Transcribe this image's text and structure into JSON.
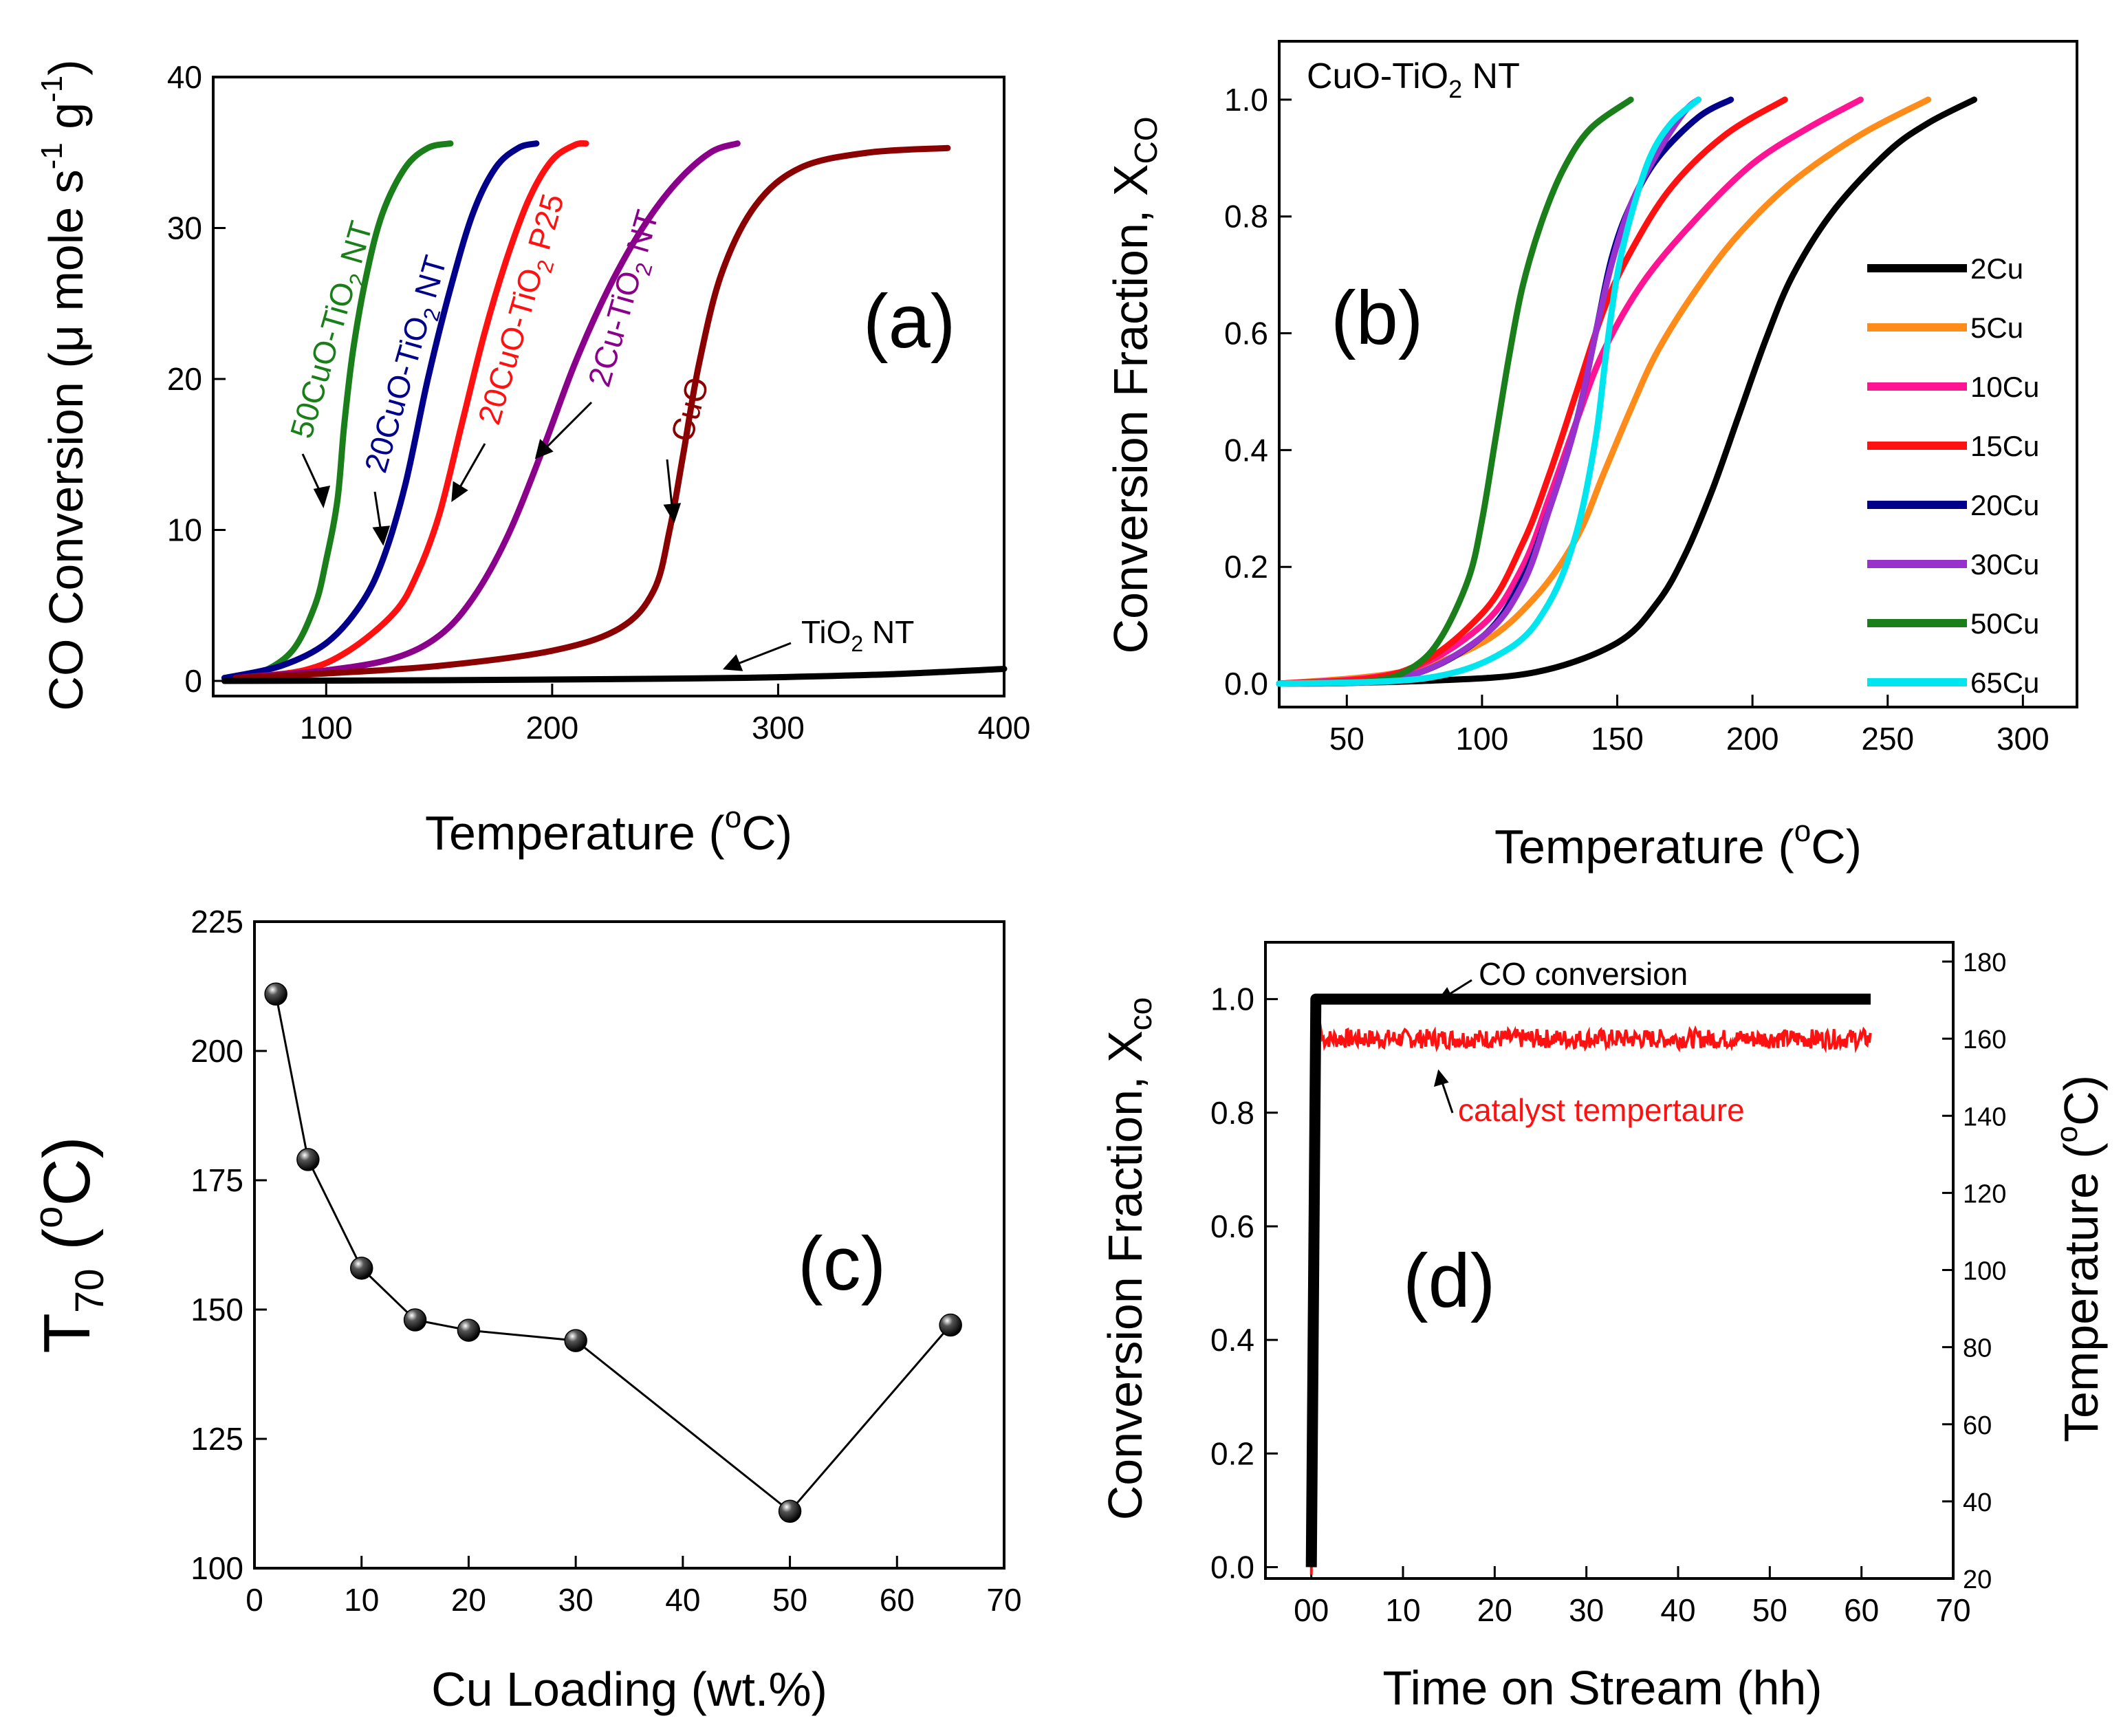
{
  "chart_data": [
    {
      "panel": "(a)",
      "type": "line",
      "title": "",
      "xlabel": "Temperature (",
      "xlabel_sup": "o",
      "xlabel_end": "C)",
      "ylabel": "CO Conversion (μ mole s",
      "ylabel_sup1": "-1",
      "ylabel_mid": " g",
      "ylabel_sup2": "-1",
      "ylabel_end": ")",
      "xlim": [
        50,
        400
      ],
      "ylim": [
        -1,
        40
      ],
      "xticks": [
        "100",
        "200",
        "300",
        "400"
      ],
      "yticks": [
        "0",
        "10",
        "20",
        "30",
        "40"
      ],
      "panel_label": "(a)",
      "series": [
        {
          "name": "50CuO-TiO2 NT",
          "label_parts": [
            "50CuO-TiO",
            "2",
            " NT"
          ],
          "color": "#1a7f1a",
          "x": [
            55,
            70,
            85,
            95,
            100,
            105,
            108,
            112,
            118,
            125,
            135,
            145,
            155
          ],
          "y": [
            0.2,
            0.5,
            2,
            5,
            8,
            12,
            17,
            22,
            27,
            31,
            34,
            35.3,
            35.6
          ]
        },
        {
          "name": "20CuO-TiO2 NT",
          "label_parts": [
            "20CuO-TiO",
            "2",
            " NT"
          ],
          "color": "#00008b",
          "x": [
            55,
            80,
            100,
            115,
            125,
            135,
            145,
            155,
            165,
            175,
            185,
            193
          ],
          "y": [
            0.2,
            1,
            2.5,
            5,
            8,
            13,
            20,
            26,
            31,
            34,
            35.3,
            35.6
          ]
        },
        {
          "name": "20CuO-TiO2 P25",
          "label_parts": [
            "20CuO-TiO",
            "2",
            " P25"
          ],
          "color": "#ff1111",
          "x": [
            60,
            90,
            110,
            130,
            140,
            150,
            160,
            170,
            180,
            190,
            200,
            210,
            215
          ],
          "y": [
            0.2,
            0.7,
            2,
            4.5,
            7,
            11,
            17,
            23,
            28,
            32,
            34.5,
            35.5,
            35.6
          ]
        },
        {
          "name": "2Cu-TiO2 NT",
          "label_parts": [
            "2Cu-TiO",
            "2",
            " NT"
          ],
          "color": "#8b008b",
          "x": [
            60,
            100,
            130,
            150,
            165,
            180,
            195,
            210,
            225,
            240,
            255,
            270,
            282
          ],
          "y": [
            0.2,
            0.7,
            1.5,
            3,
            5.5,
            9.5,
            15,
            21,
            26,
            30,
            33,
            35,
            35.6
          ]
        },
        {
          "name": "CuO",
          "label_parts": [
            "CuO",
            "",
            ""
          ],
          "color": "#8b0000",
          "x": [
            60,
            100,
            150,
            200,
            230,
            245,
            252,
            258,
            265,
            275,
            290,
            310,
            340,
            375
          ],
          "y": [
            0.2,
            0.5,
            1,
            2,
            3.5,
            6,
            10,
            15,
            21,
            27,
            31.5,
            34,
            35,
            35.3
          ]
        },
        {
          "name": "TiO2 NT",
          "label_parts": [
            "TiO",
            "2",
            " NT"
          ],
          "color": "#000000",
          "x": [
            55,
            150,
            250,
            300,
            350,
            400
          ],
          "y": [
            0,
            0.05,
            0.15,
            0.25,
            0.45,
            0.8
          ]
        }
      ]
    },
    {
      "panel": "(b)",
      "type": "line",
      "title": "CuO-TiO",
      "title_sub": "2",
      "title_end": " NT",
      "xlabel": "Temperature (",
      "xlabel_sup": "o",
      "xlabel_end": "C)",
      "ylabel": "Conversion Fraction, X",
      "ylabel_sub": "CO",
      "xlim": [
        25,
        320
      ],
      "ylim": [
        -0.04,
        1.1
      ],
      "xticks": [
        "50",
        "100",
        "150",
        "200",
        "250",
        "300"
      ],
      "yticks": [
        "0.0",
        "0.2",
        "0.4",
        "0.6",
        "0.8",
        "1.0"
      ],
      "panel_label": "(b)",
      "series": [
        {
          "name": "2Cu",
          "color": "#000000",
          "x": [
            25,
            80,
            120,
            150,
            165,
            175,
            185,
            195,
            205,
            215,
            230,
            250,
            265,
            282
          ],
          "y": [
            0,
            0.005,
            0.02,
            0.07,
            0.14,
            0.22,
            0.33,
            0.46,
            0.59,
            0.7,
            0.81,
            0.91,
            0.96,
            1.0
          ]
        },
        {
          "name": "5Cu",
          "color": "#ff8c1a",
          "x": [
            25,
            70,
            100,
            120,
            135,
            145,
            155,
            165,
            180,
            195,
            215,
            240,
            265
          ],
          "y": [
            0,
            0.02,
            0.07,
            0.15,
            0.25,
            0.36,
            0.47,
            0.57,
            0.68,
            0.77,
            0.86,
            0.94,
            1.0
          ]
        },
        {
          "name": "10Cu",
          "color": "#ff1493",
          "x": [
            25,
            70,
            100,
            115,
            125,
            135,
            145,
            160,
            180,
            200,
            220,
            240
          ],
          "y": [
            0,
            0.02,
            0.1,
            0.2,
            0.32,
            0.45,
            0.57,
            0.69,
            0.8,
            0.89,
            0.95,
            1.0
          ]
        },
        {
          "name": "15Cu",
          "color": "#ff1111",
          "x": [
            25,
            70,
            100,
            115,
            125,
            135,
            145,
            155,
            170,
            190,
            212
          ],
          "y": [
            0,
            0.02,
            0.12,
            0.24,
            0.36,
            0.5,
            0.64,
            0.74,
            0.85,
            0.94,
            1.0
          ]
        },
        {
          "name": "20Cu",
          "color": "#00008b",
          "x": [
            25,
            70,
            100,
            115,
            125,
            135,
            142,
            148,
            155,
            165,
            180,
            192
          ],
          "y": [
            0,
            0.01,
            0.08,
            0.18,
            0.3,
            0.45,
            0.6,
            0.73,
            0.82,
            0.9,
            0.97,
            1.0
          ]
        },
        {
          "name": "30Cu",
          "color": "#9932cc",
          "x": [
            25,
            70,
            100,
            115,
            125,
            135,
            142,
            148,
            155,
            165,
            175,
            180
          ],
          "y": [
            0,
            0.01,
            0.08,
            0.17,
            0.3,
            0.45,
            0.6,
            0.72,
            0.82,
            0.91,
            0.98,
            1.0
          ]
        },
        {
          "name": "50Cu",
          "color": "#1a7f1a",
          "x": [
            25,
            60,
            75,
            85,
            95,
            100,
            105,
            110,
            115,
            122,
            130,
            140,
            155
          ],
          "y": [
            0,
            0.005,
            0.03,
            0.08,
            0.18,
            0.28,
            0.42,
            0.56,
            0.68,
            0.79,
            0.88,
            0.95,
            1.0
          ]
        },
        {
          "name": "65Cu",
          "color": "#00e5ee",
          "x": [
            25,
            80,
            110,
            125,
            135,
            142,
            146,
            150,
            155,
            162,
            170,
            180
          ],
          "y": [
            0,
            0.01,
            0.06,
            0.14,
            0.26,
            0.42,
            0.57,
            0.7,
            0.8,
            0.9,
            0.96,
            1.0
          ]
        }
      ]
    },
    {
      "panel": "(c)",
      "type": "scatter",
      "title": "",
      "xlabel": "Cu Loading  (wt.%)",
      "ylabel": "T",
      "ylabel_sub": "70",
      "ylabel_mid": " (",
      "ylabel_sup": "o",
      "ylabel_end": "C)",
      "xlim": [
        0,
        70
      ],
      "ylim": [
        100,
        225
      ],
      "xticks": [
        "0",
        "10",
        "20",
        "30",
        "40",
        "50",
        "60",
        "70"
      ],
      "yticks": [
        "100",
        "125",
        "150",
        "175",
        "200",
        "225"
      ],
      "panel_label": "(c)",
      "series": [
        {
          "name": "T70",
          "color": "#000000",
          "x": [
            2,
            5,
            10,
            15,
            20,
            30,
            50,
            65
          ],
          "y": [
            211,
            179,
            158,
            148,
            146,
            144,
            111,
            147
          ]
        }
      ]
    },
    {
      "panel": "(d)",
      "type": "line",
      "title": "",
      "xlabel": "Time on Stream  (hh)",
      "ylabel": "Conversion Fraction, X",
      "ylabel_sub": "co",
      "ylabel_right": "Temperature (",
      "ylabel_right_sup": "o",
      "ylabel_right_end": "C)",
      "xlim": [
        -5,
        70
      ],
      "ylim": [
        -0.02,
        1.1
      ],
      "ylim_right": [
        20,
        185
      ],
      "xticks": [
        "00",
        "10",
        "20",
        "30",
        "40",
        "50",
        "60",
        "70"
      ],
      "yticks": [
        "0.0",
        "0.2",
        "0.4",
        "0.6",
        "0.8",
        "1.0"
      ],
      "yticks_right": [
        "20",
        "40",
        "60",
        "80",
        "100",
        "120",
        "140",
        "160",
        "180"
      ],
      "panel_label": "(d)",
      "series": [
        {
          "name": "CO conversion",
          "axis": "left",
          "color": "#000000",
          "x": [
            0,
            0.5,
            1,
            61
          ],
          "y": [
            0,
            1.0,
            1.0,
            1.0
          ]
        },
        {
          "name": "catalyst tempertaure",
          "axis": "right",
          "color": "#ff1111",
          "x": [
            0,
            0.5,
            0.8,
            1.2,
            61
          ],
          "y": [
            21,
            150,
            166,
            160,
            160
          ]
        }
      ]
    }
  ]
}
